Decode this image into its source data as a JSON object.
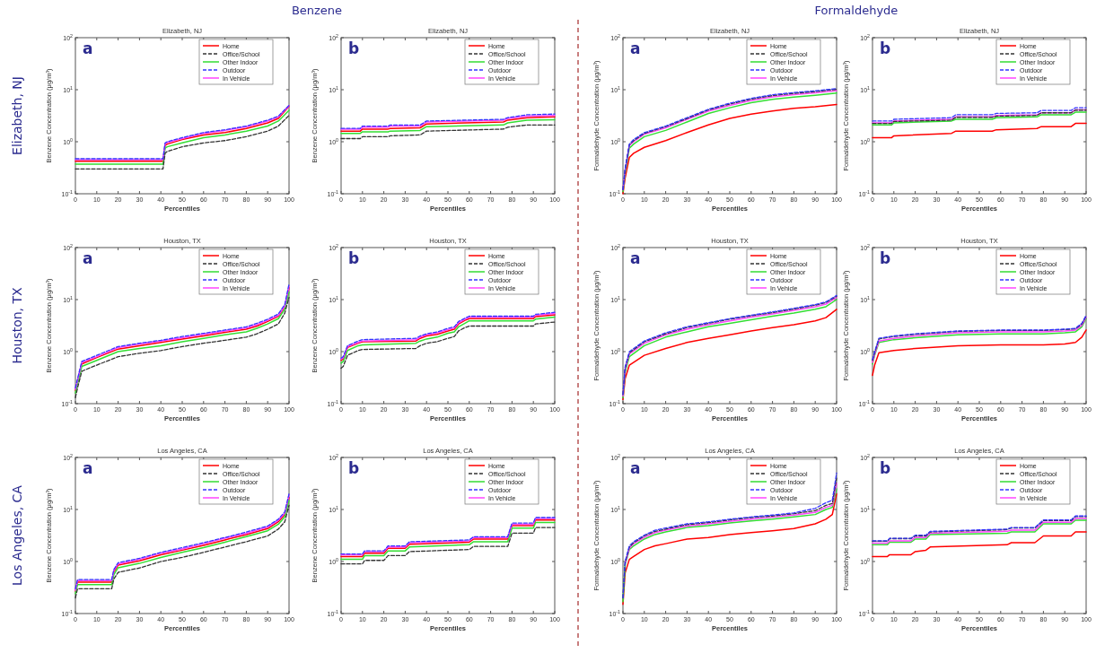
{
  "chart_data": [
    {
      "type": "line",
      "title": "Elizabeth, NJ",
      "xlabel": "Percentiles",
      "ylabel": "Benzene Concentration (μg/m³)",
      "annotations": [
        "a"
      ],
      "log": "y",
      "legend": "top right",
      "xlim": [
        0,
        100
      ],
      "xticks": [
        0,
        10,
        20,
        30,
        40,
        50,
        60,
        70,
        80,
        90,
        100
      ],
      "ylim": [
        0.1,
        100
      ],
      "yticks": [
        {
          "value": 0.1,
          "label": "10$^{-1}$"
        },
        {
          "value": 1,
          "label": "10$^{0}$"
        },
        {
          "value": 10,
          "label": "10$^{1}$"
        },
        {
          "value": 100,
          "label": "10$^{2}$"
        }
      ],
      "x": [
        0,
        41,
        42,
        43,
        50,
        60,
        70,
        80,
        90,
        95,
        100
      ],
      "series": [
        {
          "name": "Home",
          "color": "#ff0000",
          "line_style": "solid",
          "values": [
            0.42,
            0.42,
            0.85,
            0.9,
            1.1,
            1.35,
            1.5,
            1.8,
            2.3,
            2.8,
            4.8
          ]
        },
        {
          "name": "Office/School",
          "color": "#333333",
          "line_style": "dashed",
          "values": [
            0.3,
            0.3,
            0.6,
            0.65,
            0.8,
            0.95,
            1.05,
            1.25,
            1.6,
            2.0,
            3.2
          ]
        },
        {
          "name": "Other Indoor",
          "color": "#33dd33",
          "line_style": "solid",
          "values": [
            0.37,
            0.37,
            0.75,
            0.8,
            0.95,
            1.2,
            1.35,
            1.6,
            2.0,
            2.5,
            4.0
          ]
        },
        {
          "name": "Outdoor",
          "color": "#3333ff",
          "line_style": "dashed",
          "values": [
            0.47,
            0.47,
            0.95,
            1.0,
            1.2,
            1.5,
            1.7,
            2.0,
            2.6,
            3.1,
            5.0
          ]
        },
        {
          "name": "In Vehicle",
          "color": "#ff44ff",
          "line_style": "solid",
          "values": [
            0.45,
            0.45,
            0.92,
            0.97,
            1.15,
            1.45,
            1.65,
            1.95,
            2.5,
            3.0,
            4.9
          ]
        }
      ]
    },
    {
      "type": "line",
      "title": "Elizabeth, NJ",
      "xlabel": "Percentiles",
      "ylabel": "Benzene Concentration (μg/m³)",
      "annotations": [
        "b"
      ],
      "log": "y",
      "legend": "top right",
      "xlim": [
        0,
        100
      ],
      "xticks": [
        0,
        10,
        20,
        30,
        40,
        50,
        60,
        70,
        80,
        90,
        100
      ],
      "ylim": [
        0.1,
        100
      ],
      "yticks": [
        {
          "value": 0.1,
          "label": "10$^{-1}$"
        },
        {
          "value": 1,
          "label": "10$^{0}$"
        },
        {
          "value": 10,
          "label": "10$^{1}$"
        },
        {
          "value": 100,
          "label": "10$^{2}$"
        }
      ],
      "x": [
        0,
        9,
        10,
        22,
        23,
        37,
        40,
        76,
        78,
        87,
        100
      ],
      "series": [
        {
          "name": "Home",
          "color": "#ff0000",
          "line_style": "solid",
          "values": [
            1.6,
            1.6,
            1.75,
            1.75,
            1.8,
            1.85,
            2.2,
            2.4,
            2.6,
            2.9,
            3.0
          ]
        },
        {
          "name": "Office/School",
          "color": "#333333",
          "line_style": "dashed",
          "values": [
            1.15,
            1.15,
            1.25,
            1.25,
            1.3,
            1.35,
            1.6,
            1.75,
            1.9,
            2.1,
            2.1
          ]
        },
        {
          "name": "Other Indoor",
          "color": "#33dd33",
          "line_style": "solid",
          "values": [
            1.45,
            1.45,
            1.55,
            1.55,
            1.6,
            1.65,
            1.95,
            2.1,
            2.3,
            2.6,
            2.65
          ]
        },
        {
          "name": "Outdoor",
          "color": "#3333ff",
          "line_style": "dashed",
          "values": [
            1.8,
            1.8,
            2.0,
            2.0,
            2.1,
            2.1,
            2.5,
            2.7,
            2.9,
            3.3,
            3.4
          ]
        },
        {
          "name": "In Vehicle",
          "color": "#ff44ff",
          "line_style": "solid",
          "values": [
            1.75,
            1.75,
            1.9,
            1.9,
            2.0,
            2.0,
            2.4,
            2.6,
            2.8,
            3.1,
            3.2
          ]
        }
      ]
    },
    {
      "type": "line",
      "title": "Elizabeth, NJ",
      "xlabel": "Percentiles",
      "ylabel": "Formaldehyde Concentration (μg/m³)",
      "annotations": [
        "a"
      ],
      "log": "y",
      "legend": "top right",
      "xlim": [
        0,
        100
      ],
      "xticks": [
        0,
        10,
        20,
        30,
        40,
        50,
        60,
        70,
        80,
        90,
        100
      ],
      "ylim": [
        0.1,
        100
      ],
      "yticks": [
        {
          "value": 0.1,
          "label": "10$^{-1}$"
        },
        {
          "value": 1,
          "label": "10$^{0}$"
        },
        {
          "value": 10,
          "label": "10$^{1}$"
        },
        {
          "value": 100,
          "label": "10$^{2}$"
        }
      ],
      "x": [
        0,
        1,
        3,
        5,
        10,
        20,
        30,
        40,
        50,
        60,
        70,
        80,
        90,
        100
      ],
      "series": [
        {
          "name": "Home",
          "color": "#ff0000",
          "line_style": "solid",
          "values": [
            0.1,
            0.2,
            0.5,
            0.6,
            0.78,
            1.05,
            1.5,
            2.1,
            2.8,
            3.4,
            3.9,
            4.4,
            4.7,
            5.2
          ]
        },
        {
          "name": "Office/School",
          "color": "#333333",
          "line_style": "dashed",
          "values": [
            0.12,
            0.29,
            0.88,
            1.05,
            1.45,
            1.95,
            2.8,
            4.1,
            5.3,
            6.6,
            7.7,
            8.5,
            9.2,
            10.2
          ]
        },
        {
          "name": "Other Indoor",
          "color": "#33dd33",
          "line_style": "solid",
          "values": [
            0.11,
            0.25,
            0.75,
            0.9,
            1.25,
            1.65,
            2.4,
            3.5,
            4.5,
            5.6,
            6.5,
            7.2,
            7.8,
            8.6
          ]
        },
        {
          "name": "Outdoor",
          "color": "#3333ff",
          "line_style": "dashed",
          "values": [
            0.12,
            0.3,
            0.9,
            1.1,
            1.5,
            2.0,
            2.9,
            4.2,
            5.5,
            6.8,
            8.0,
            8.8,
            9.5,
            10.5
          ]
        },
        {
          "name": "In Vehicle",
          "color": "#ff44ff",
          "line_style": "solid",
          "values": [
            0.12,
            0.28,
            0.85,
            1.0,
            1.4,
            1.85,
            2.7,
            3.9,
            5.0,
            6.2,
            7.3,
            8.0,
            8.7,
            9.6
          ]
        }
      ]
    },
    {
      "type": "line",
      "title": "Elizabeth, NJ",
      "xlabel": "Percentiles",
      "ylabel": "Formaldehyde Concentration (μg/m³)",
      "annotations": [
        "b"
      ],
      "log": "y",
      "legend": "top right",
      "xlim": [
        0,
        100
      ],
      "xticks": [
        0,
        10,
        20,
        30,
        40,
        50,
        60,
        70,
        80,
        90,
        100
      ],
      "ylim": [
        0.1,
        100
      ],
      "yticks": [
        {
          "value": 0.1,
          "label": "10$^{-1}$"
        },
        {
          "value": 1,
          "label": "10$^{0}$"
        },
        {
          "value": 10,
          "label": "10$^{1}$"
        },
        {
          "value": 100,
          "label": "10$^{2}$"
        }
      ],
      "x": [
        0,
        9,
        10,
        37,
        39,
        56,
        58,
        77,
        79,
        93,
        95,
        100
      ],
      "series": [
        {
          "name": "Home",
          "color": "#ff0000",
          "line_style": "solid",
          "values": [
            1.2,
            1.2,
            1.3,
            1.45,
            1.6,
            1.6,
            1.7,
            1.8,
            1.95,
            1.95,
            2.25,
            2.25
          ]
        },
        {
          "name": "Office/School",
          "color": "#333333",
          "line_style": "dashed",
          "values": [
            2.25,
            2.25,
            2.45,
            2.6,
            2.95,
            2.95,
            3.1,
            3.2,
            3.6,
            3.6,
            4.05,
            4.05
          ]
        },
        {
          "name": "Other Indoor",
          "color": "#33dd33",
          "line_style": "solid",
          "values": [
            2.1,
            2.1,
            2.3,
            2.5,
            2.7,
            2.7,
            2.9,
            3.0,
            3.3,
            3.3,
            3.7,
            3.7
          ]
        },
        {
          "name": "Outdoor",
          "color": "#3333ff",
          "line_style": "dashed",
          "values": [
            2.5,
            2.5,
            2.7,
            2.9,
            3.3,
            3.3,
            3.5,
            3.6,
            4.0,
            4.0,
            4.5,
            4.5
          ]
        },
        {
          "name": "In Vehicle",
          "color": "#ff44ff",
          "line_style": "solid",
          "values": [
            2.3,
            2.3,
            2.5,
            2.7,
            3.0,
            3.0,
            3.2,
            3.3,
            3.6,
            3.6,
            4.1,
            4.1
          ]
        }
      ]
    },
    {
      "type": "line",
      "title": "Houston, TX",
      "xlabel": "Percentiles",
      "ylabel": "Benzene Concentration (μg/m³)",
      "annotations": [
        "a"
      ],
      "log": "y",
      "legend": "top right",
      "xlim": [
        0,
        100
      ],
      "xticks": [
        0,
        10,
        20,
        30,
        40,
        50,
        60,
        70,
        80,
        90,
        100
      ],
      "ylim": [
        0.1,
        100
      ],
      "yticks": [
        {
          "value": 0.1,
          "label": "10$^{-1}$"
        },
        {
          "value": 1,
          "label": "10$^{0}$"
        },
        {
          "value": 10,
          "label": "10$^{1}$"
        },
        {
          "value": 100,
          "label": "10$^{2}$"
        }
      ],
      "x": [
        0,
        1,
        3,
        10,
        20,
        30,
        40,
        50,
        60,
        70,
        80,
        85,
        90,
        95,
        98,
        100
      ],
      "series": [
        {
          "name": "Home",
          "color": "#ff0000",
          "line_style": "solid",
          "values": [
            0.18,
            0.27,
            0.58,
            0.77,
            1.12,
            1.3,
            1.5,
            1.75,
            2.0,
            2.35,
            2.7,
            3.1,
            3.8,
            4.8,
            7.2,
            17
          ]
        },
        {
          "name": "Office/School",
          "color": "#333333",
          "line_style": "dashed",
          "values": [
            0.13,
            0.2,
            0.42,
            0.55,
            0.8,
            0.93,
            1.05,
            1.25,
            1.45,
            1.65,
            1.9,
            2.2,
            2.7,
            3.4,
            5.5,
            11
          ]
        },
        {
          "name": "Other Indoor",
          "color": "#33dd33",
          "line_style": "solid",
          "values": [
            0.16,
            0.24,
            0.52,
            0.68,
            1.0,
            1.15,
            1.3,
            1.55,
            1.8,
            2.1,
            2.4,
            2.8,
            3.4,
            4.3,
            6.5,
            14
          ]
        },
        {
          "name": "Outdoor",
          "color": "#3333ff",
          "line_style": "dashed",
          "values": [
            0.2,
            0.3,
            0.65,
            0.85,
            1.25,
            1.45,
            1.65,
            1.95,
            2.25,
            2.6,
            3.0,
            3.5,
            4.2,
            5.3,
            8,
            20
          ]
        },
        {
          "name": "In Vehicle",
          "color": "#ff44ff",
          "line_style": "solid",
          "values": [
            0.19,
            0.28,
            0.62,
            0.8,
            1.2,
            1.4,
            1.6,
            1.85,
            2.15,
            2.5,
            2.85,
            3.3,
            4.0,
            5.0,
            7.5,
            18
          ]
        }
      ]
    },
    {
      "type": "line",
      "title": "Houston, TX",
      "xlabel": "Percentiles",
      "ylabel": "Benzene Concentration (μg/m³)",
      "annotations": [
        "b"
      ],
      "log": "y",
      "legend": "top right",
      "xlim": [
        0,
        100
      ],
      "xticks": [
        0,
        10,
        20,
        30,
        40,
        50,
        60,
        70,
        80,
        90,
        100
      ],
      "ylim": [
        0.1,
        100
      ],
      "yticks": [
        {
          "value": 0.1,
          "label": "10$^{-1}$"
        },
        {
          "value": 1,
          "label": "10$^{0}$"
        },
        {
          "value": 10,
          "label": "10$^{1}$"
        },
        {
          "value": 100,
          "label": "10$^{2}$"
        }
      ],
      "x": [
        0,
        1,
        3,
        8,
        10,
        35,
        37,
        40,
        45,
        50,
        53,
        55,
        58,
        60,
        90,
        91,
        100
      ],
      "series": [
        {
          "name": "Home",
          "color": "#ff0000",
          "line_style": "solid",
          "values": [
            0.68,
            0.72,
            1.2,
            1.45,
            1.55,
            1.6,
            1.8,
            2.0,
            2.15,
            2.5,
            2.7,
            3.4,
            4.0,
            4.3,
            4.3,
            4.7,
            5.1
          ]
        },
        {
          "name": "Office/School",
          "color": "#333333",
          "line_style": "dashed",
          "values": [
            0.48,
            0.52,
            0.85,
            1.05,
            1.1,
            1.15,
            1.3,
            1.45,
            1.55,
            1.8,
            1.95,
            2.5,
            2.9,
            3.1,
            3.1,
            3.4,
            3.7
          ]
        },
        {
          "name": "Other Indoor",
          "color": "#33dd33",
          "line_style": "solid",
          "values": [
            0.6,
            0.65,
            1.05,
            1.3,
            1.35,
            1.45,
            1.6,
            1.75,
            1.9,
            2.25,
            2.4,
            3.0,
            3.5,
            3.9,
            3.9,
            4.2,
            4.6
          ]
        },
        {
          "name": "Outdoor",
          "color": "#3333ff",
          "line_style": "dashed",
          "values": [
            0.75,
            0.8,
            1.3,
            1.6,
            1.7,
            1.8,
            2.0,
            2.2,
            2.4,
            2.8,
            3.0,
            3.8,
            4.4,
            4.8,
            4.8,
            5.2,
            5.7
          ]
        },
        {
          "name": "In Vehicle",
          "color": "#ff44ff",
          "line_style": "solid",
          "values": [
            0.72,
            0.76,
            1.25,
            1.5,
            1.6,
            1.7,
            1.9,
            2.1,
            2.3,
            2.65,
            2.85,
            3.6,
            4.2,
            4.6,
            4.6,
            5.0,
            5.4
          ]
        }
      ]
    },
    {
      "type": "line",
      "title": "Houston, TX",
      "xlabel": "Percentiles",
      "ylabel": "Formaldehyde Concentration (μg/m³)",
      "annotations": [
        "a"
      ],
      "log": "y",
      "legend": "top right",
      "xlim": [
        0,
        100
      ],
      "xticks": [
        0,
        10,
        20,
        30,
        40,
        50,
        60,
        70,
        80,
        90,
        100
      ],
      "ylim": [
        0.1,
        100
      ],
      "yticks": [
        {
          "value": 0.1,
          "label": "10$^{-1}$"
        },
        {
          "value": 1,
          "label": "10$^{0}$"
        },
        {
          "value": 10,
          "label": "10$^{1}$"
        },
        {
          "value": 100,
          "label": "10$^{2}$"
        }
      ],
      "x": [
        0,
        1,
        3,
        10,
        20,
        30,
        40,
        50,
        60,
        70,
        80,
        90,
        95,
        100
      ],
      "series": [
        {
          "name": "Home",
          "color": "#ff0000",
          "line_style": "solid",
          "values": [
            0.12,
            0.3,
            0.55,
            0.85,
            1.15,
            1.5,
            1.8,
            2.1,
            2.5,
            2.9,
            3.3,
            3.9,
            4.5,
            6.5
          ]
        },
        {
          "name": "Office/School",
          "color": "#333333",
          "line_style": "dashed",
          "values": [
            0.15,
            0.48,
            0.95,
            1.55,
            2.2,
            2.9,
            3.5,
            4.2,
            4.9,
            5.6,
            6.6,
            7.8,
            8.8,
            11.5
          ]
        },
        {
          "name": "Other Indoor",
          "color": "#33dd33",
          "line_style": "solid",
          "values": [
            0.13,
            0.4,
            0.8,
            1.3,
            1.9,
            2.4,
            3.0,
            3.5,
            4.1,
            4.8,
            5.5,
            6.5,
            7.3,
            10
          ]
        },
        {
          "name": "Outdoor",
          "color": "#3333ff",
          "line_style": "dashed",
          "values": [
            0.15,
            0.5,
            1.0,
            1.6,
            2.3,
            3.0,
            3.6,
            4.3,
            5.0,
            5.8,
            6.8,
            8.0,
            9.0,
            12
          ]
        },
        {
          "name": "In Vehicle",
          "color": "#ff44ff",
          "line_style": "solid",
          "values": [
            0.14,
            0.45,
            0.9,
            1.45,
            2.1,
            2.7,
            3.3,
            3.9,
            4.6,
            5.3,
            6.2,
            7.3,
            8.2,
            11
          ]
        }
      ]
    },
    {
      "type": "line",
      "title": "Houston, TX",
      "xlabel": "Percentiles",
      "ylabel": "Formaldehyde Concentration (μg/m³)",
      "annotations": [
        "b"
      ],
      "log": "y",
      "legend": "top right",
      "xlim": [
        0,
        100
      ],
      "xticks": [
        0,
        10,
        20,
        30,
        40,
        50,
        60,
        70,
        80,
        90,
        100
      ],
      "ylim": [
        0.1,
        100
      ],
      "yticks": [
        {
          "value": 0.1,
          "label": "10$^{-1}$"
        },
        {
          "value": 1,
          "label": "10$^{0}$"
        },
        {
          "value": 10,
          "label": "10$^{1}$"
        },
        {
          "value": 100,
          "label": "10$^{2}$"
        }
      ],
      "x": [
        0,
        1,
        3,
        10,
        20,
        40,
        60,
        80,
        90,
        95,
        98,
        100
      ],
      "series": [
        {
          "name": "Home",
          "color": "#ff0000",
          "line_style": "solid",
          "values": [
            0.35,
            0.55,
            0.95,
            1.05,
            1.15,
            1.3,
            1.35,
            1.35,
            1.4,
            1.5,
            1.9,
            2.6
          ]
        },
        {
          "name": "Office/School",
          "color": "#333333",
          "line_style": "dashed",
          "values": [
            0.68,
            0.95,
            1.75,
            1.95,
            2.15,
            2.45,
            2.55,
            2.55,
            2.65,
            2.75,
            3.4,
            4.8
          ]
        },
        {
          "name": "Other Indoor",
          "color": "#33dd33",
          "line_style": "solid",
          "values": [
            0.58,
            0.85,
            1.5,
            1.7,
            1.85,
            2.1,
            2.2,
            2.2,
            2.3,
            2.4,
            3.0,
            4.3
          ]
        },
        {
          "name": "Outdoor",
          "color": "#3333ff",
          "line_style": "dashed",
          "values": [
            0.7,
            1.0,
            1.8,
            2.0,
            2.2,
            2.5,
            2.6,
            2.6,
            2.7,
            2.8,
            3.5,
            5.0
          ]
        },
        {
          "name": "In Vehicle",
          "color": "#ff44ff",
          "line_style": "solid",
          "values": [
            0.62,
            0.9,
            1.6,
            1.8,
            2.0,
            2.3,
            2.4,
            2.4,
            2.5,
            2.6,
            3.2,
            4.6
          ]
        }
      ]
    },
    {
      "type": "line",
      "title": "Los Angeles, CA",
      "xlabel": "Percentiles",
      "ylabel": "Benzene Concentration (μg/m³)",
      "annotations": [
        "a"
      ],
      "log": "y",
      "legend": "top right",
      "xlim": [
        0,
        100
      ],
      "xticks": [
        0,
        10,
        20,
        30,
        40,
        50,
        60,
        70,
        80,
        90,
        100
      ],
      "ylim": [
        0.1,
        100
      ],
      "yticks": [
        {
          "value": 0.1,
          "label": "10$^{-1}$"
        },
        {
          "value": 1,
          "label": "10$^{0}$"
        },
        {
          "value": 10,
          "label": "10$^{1}$"
        },
        {
          "value": 100,
          "label": "10$^{2}$"
        }
      ],
      "x": [
        0,
        1,
        17,
        18,
        20,
        30,
        40,
        50,
        60,
        70,
        80,
        90,
        95,
        98,
        100
      ],
      "series": [
        {
          "name": "Home",
          "color": "#ff0000",
          "line_style": "solid",
          "values": [
            0.27,
            0.4,
            0.4,
            0.63,
            0.85,
            1.03,
            1.35,
            1.65,
            2.05,
            2.6,
            3.3,
            4.3,
            5.8,
            8,
            17
          ]
        },
        {
          "name": "Office/School",
          "color": "#333333",
          "line_style": "dashed",
          "values": [
            0.2,
            0.3,
            0.3,
            0.46,
            0.62,
            0.75,
            1.0,
            1.2,
            1.5,
            1.9,
            2.4,
            3.1,
            4.2,
            5.8,
            12
          ]
        },
        {
          "name": "Other Indoor",
          "color": "#33dd33",
          "line_style": "solid",
          "values": [
            0.24,
            0.36,
            0.36,
            0.56,
            0.76,
            0.92,
            1.2,
            1.5,
            1.85,
            2.35,
            3.0,
            3.9,
            5.2,
            7.2,
            15
          ]
        },
        {
          "name": "Outdoor",
          "color": "#3333ff",
          "line_style": "dashed",
          "values": [
            0.3,
            0.45,
            0.45,
            0.7,
            0.95,
            1.15,
            1.5,
            1.85,
            2.3,
            2.9,
            3.7,
            4.8,
            6.5,
            9,
            20
          ]
        },
        {
          "name": "In Vehicle",
          "color": "#ff44ff",
          "line_style": "solid",
          "values": [
            0.28,
            0.43,
            0.43,
            0.67,
            0.9,
            1.1,
            1.45,
            1.75,
            2.2,
            2.8,
            3.5,
            4.6,
            6.2,
            8.5,
            19
          ]
        }
      ]
    },
    {
      "type": "line",
      "title": "Los Angeles, CA",
      "xlabel": "Percentiles",
      "ylabel": "Benzene Concentration (μg/m³)",
      "annotations": [
        "b"
      ],
      "log": "y",
      "legend": "top right",
      "xlim": [
        0,
        100
      ],
      "xticks": [
        0,
        10,
        20,
        30,
        40,
        50,
        60,
        70,
        80,
        90,
        100
      ],
      "ylim": [
        0.1,
        100
      ],
      "yticks": [
        {
          "value": 0.1,
          "label": "10$^{-1}$"
        },
        {
          "value": 1,
          "label": "10$^{0}$"
        },
        {
          "value": 10,
          "label": "10$^{1}$"
        },
        {
          "value": 100,
          "label": "10$^{2}$"
        }
      ],
      "x": [
        0,
        10,
        11,
        20,
        22,
        30,
        32,
        60,
        62,
        78,
        80,
        90,
        91,
        100
      ],
      "series": [
        {
          "name": "Home",
          "color": "#ff0000",
          "line_style": "solid",
          "values": [
            1.25,
            1.25,
            1.45,
            1.45,
            1.8,
            1.8,
            2.15,
            2.35,
            2.7,
            2.7,
            4.9,
            4.9,
            6.3,
            6.3
          ]
        },
        {
          "name": "Office/School",
          "color": "#333333",
          "line_style": "dashed",
          "values": [
            0.9,
            0.9,
            1.05,
            1.05,
            1.3,
            1.3,
            1.55,
            1.7,
            1.95,
            1.95,
            3.5,
            3.5,
            4.5,
            4.5
          ]
        },
        {
          "name": "Other Indoor",
          "color": "#33dd33",
          "line_style": "solid",
          "values": [
            1.1,
            1.1,
            1.3,
            1.3,
            1.6,
            1.6,
            1.9,
            2.1,
            2.4,
            2.4,
            4.4,
            4.4,
            5.6,
            5.6
          ]
        },
        {
          "name": "Outdoor",
          "color": "#3333ff",
          "line_style": "dashed",
          "values": [
            1.4,
            1.4,
            1.6,
            1.6,
            2.0,
            2.0,
            2.4,
            2.6,
            3.0,
            3.0,
            5.5,
            5.5,
            7.0,
            7.0
          ]
        },
        {
          "name": "In Vehicle",
          "color": "#ff44ff",
          "line_style": "solid",
          "values": [
            1.35,
            1.35,
            1.55,
            1.55,
            1.9,
            1.9,
            2.3,
            2.5,
            2.9,
            2.9,
            5.2,
            5.2,
            6.7,
            6.7
          ]
        }
      ]
    },
    {
      "type": "line",
      "title": "Los Angeles, CA",
      "xlabel": "Percentiles",
      "ylabel": "Formaldehyde Concentration (μg/m³)",
      "annotations": [
        "a"
      ],
      "log": "y",
      "legend": "top right",
      "xlim": [
        0,
        100
      ],
      "xticks": [
        0,
        10,
        20,
        30,
        40,
        50,
        60,
        70,
        80,
        90,
        100
      ],
      "ylim": [
        0.1,
        100
      ],
      "yticks": [
        {
          "value": 0.1,
          "label": "10$^{-1}$"
        },
        {
          "value": 1,
          "label": "10$^{0}$"
        },
        {
          "value": 10,
          "label": "10$^{1}$"
        },
        {
          "value": 100,
          "label": "10$^{2}$"
        }
      ],
      "x": [
        0,
        1,
        3,
        5,
        10,
        15,
        20,
        30,
        40,
        50,
        60,
        70,
        80,
        90,
        95,
        98,
        100
      ],
      "series": [
        {
          "name": "Home",
          "color": "#ff0000",
          "line_style": "solid",
          "values": [
            0.15,
            0.6,
            1.1,
            1.25,
            1.7,
            2.0,
            2.2,
            2.7,
            2.9,
            3.3,
            3.6,
            3.9,
            4.3,
            5.3,
            6.5,
            8,
            20
          ]
        },
        {
          "name": "Office/School",
          "color": "#333333",
          "line_style": "dashed",
          "values": [
            0.2,
            0.95,
            1.9,
            2.3,
            3.1,
            3.8,
            4.2,
            5.1,
            5.6,
            6.3,
            7.0,
            7.5,
            8.3,
            9.5,
            12,
            13,
            40
          ]
        },
        {
          "name": "Other Indoor",
          "color": "#33dd33",
          "line_style": "solid",
          "values": [
            0.17,
            0.85,
            1.7,
            2.0,
            2.7,
            3.3,
            3.7,
            4.5,
            4.9,
            5.5,
            6.0,
            6.5,
            7.2,
            8.0,
            10,
            11,
            25
          ]
        },
        {
          "name": "Outdoor",
          "color": "#3333ff",
          "line_style": "dashed",
          "values": [
            0.2,
            1.0,
            2.0,
            2.4,
            3.2,
            4.0,
            4.4,
            5.3,
            5.8,
            6.5,
            7.2,
            7.8,
            8.6,
            10.5,
            13.5,
            15,
            50
          ]
        },
        {
          "name": "In Vehicle",
          "color": "#ff44ff",
          "line_style": "solid",
          "values": [
            null,
            0.9,
            1.8,
            2.2,
            2.9,
            3.6,
            4.0,
            4.8,
            5.3,
            5.9,
            6.5,
            7.1,
            7.8,
            8.8,
            11,
            12,
            32
          ]
        }
      ]
    },
    {
      "type": "line",
      "title": "Los Angeles, CA",
      "xlabel": "Percentiles",
      "ylabel": "Formaldehyde Concentration (μg/m³)",
      "annotations": [
        "b"
      ],
      "log": "y",
      "legend": "top right",
      "xlim": [
        0,
        100
      ],
      "xticks": [
        0,
        10,
        20,
        30,
        40,
        50,
        60,
        70,
        80,
        90,
        100
      ],
      "ylim": [
        0.1,
        100
      ],
      "yticks": [
        {
          "value": 0.1,
          "label": "10$^{-1}$"
        },
        {
          "value": 1,
          "label": "10$^{0}$"
        },
        {
          "value": 10,
          "label": "10$^{1}$"
        },
        {
          "value": 100,
          "label": "10$^{2}$"
        }
      ],
      "x": [
        0,
        7,
        8,
        18,
        20,
        25,
        27,
        63,
        65,
        76,
        80,
        93,
        95,
        100
      ],
      "series": [
        {
          "name": "Home",
          "color": "#ff0000",
          "line_style": "solid",
          "values": [
            1.25,
            1.25,
            1.35,
            1.35,
            1.55,
            1.65,
            1.9,
            2.1,
            2.3,
            2.3,
            3.1,
            3.1,
            3.7,
            3.7
          ]
        },
        {
          "name": "Office/School",
          "color": "#333333",
          "line_style": "dashed",
          "values": [
            2.45,
            2.45,
            2.75,
            2.75,
            3.1,
            3.1,
            3.7,
            4.1,
            4.4,
            4.4,
            6.1,
            6.1,
            7.3,
            7.3
          ]
        },
        {
          "name": "Other Indoor",
          "color": "#33dd33",
          "line_style": "solid",
          "values": [
            2.1,
            2.1,
            2.35,
            2.35,
            2.7,
            2.7,
            3.3,
            3.5,
            3.7,
            3.7,
            5.3,
            5.3,
            6.2,
            6.2
          ]
        },
        {
          "name": "Outdoor",
          "color": "#3333ff",
          "line_style": "dashed",
          "values": [
            2.5,
            2.5,
            2.8,
            2.8,
            3.2,
            3.2,
            3.8,
            4.2,
            4.5,
            4.5,
            6.3,
            6.3,
            7.5,
            7.5
          ]
        },
        {
          "name": "In Vehicle",
          "color": "#ff44ff",
          "line_style": "solid",
          "values": [
            2.25,
            2.25,
            2.5,
            2.5,
            2.9,
            2.9,
            3.5,
            3.8,
            4.0,
            4.0,
            5.7,
            5.7,
            6.7,
            6.7
          ]
        }
      ]
    },
    {
      "type": "other",
      "annotations": [
        "Benzene",
        "Formaldehyde",
        "Elizabeth, NJ",
        "Houston, TX",
        "Los Angeles, CA"
      ]
    }
  ]
}
